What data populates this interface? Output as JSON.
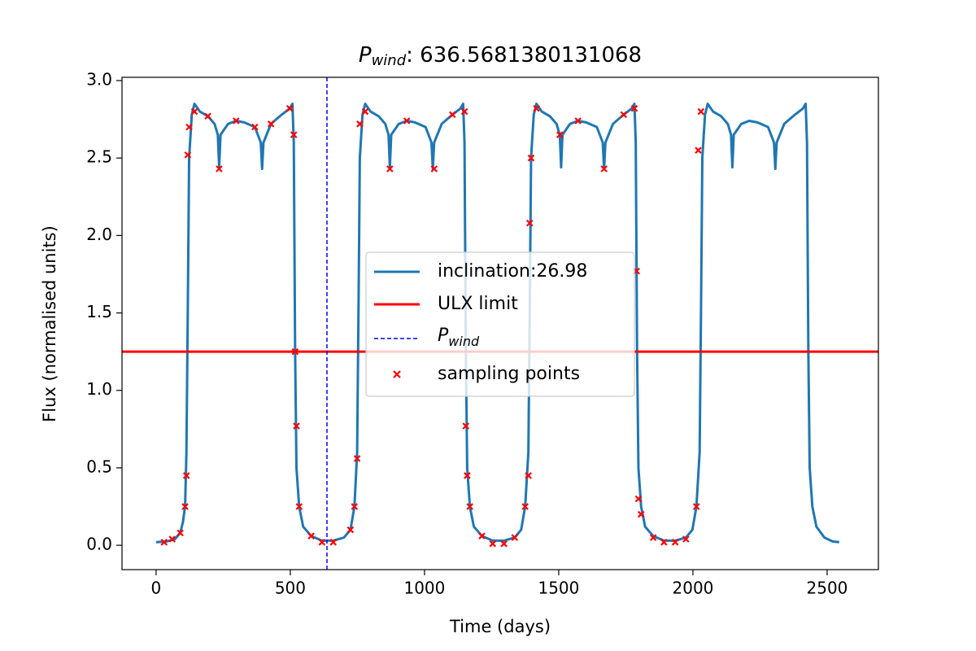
{
  "chart_data": {
    "type": "line",
    "title": {
      "symbol": "P",
      "subscript": "wind",
      "rest": ": 636.5681380131068"
    },
    "xlabel": "Time (days)",
    "ylabel": "Flux (normalised units)",
    "xlim": [
      -127,
      2691
    ],
    "ylim": [
      -0.157,
      3.021
    ],
    "xticks": [
      0,
      500,
      1000,
      1500,
      2000,
      2500
    ],
    "yticks": [
      {
        "value": 0,
        "label": "0.0"
      },
      0.5,
      {
        "value": 1,
        "label": "1.0"
      },
      1.5,
      {
        "value": 2,
        "label": "2.0"
      },
      2.5,
      {
        "value": 3,
        "label": "3.0"
      }
    ],
    "legend": "center",
    "series": [
      {
        "name": "inclination:26.98",
        "color": "#1f77b4",
        "x": [
          0,
          40,
          70,
          90,
          100,
          108,
          113,
          118,
          123,
          133,
          143,
          163,
          193,
          218,
          230,
          235,
          240,
          268,
          298,
          328,
          368,
          390,
          395,
          400,
          428,
          468,
          498,
          508,
          513,
          518,
          523,
          533,
          548,
          578,
          618,
          660,
          700,
          724,
          739,
          749,
          754,
          759,
          769,
          779,
          799,
          829,
          854,
          866,
          871,
          876,
          904,
          934,
          964,
          1004,
          1026,
          1031,
          1036,
          1064,
          1104,
          1134,
          1144,
          1149,
          1154,
          1159,
          1169,
          1184,
          1214,
          1254,
          1296,
          1336,
          1360,
          1375,
          1387,
          1392,
          1397,
          1407,
          1417,
          1437,
          1467,
          1492,
          1504,
          1509,
          1514,
          1542,
          1572,
          1602,
          1642,
          1664,
          1669,
          1674,
          1702,
          1742,
          1772,
          1782,
          1787,
          1792,
          1797,
          1807,
          1822,
          1852,
          1892,
          1934,
          1974,
          1998,
          2013,
          2025,
          2030,
          2035,
          2045,
          2055,
          2075,
          2105,
          2130,
          2142,
          2147,
          2152,
          2180,
          2210,
          2240,
          2280,
          2302,
          2307,
          2312,
          2340,
          2380,
          2410,
          2420,
          2425,
          2430,
          2435,
          2445,
          2460,
          2490,
          2520,
          2545
        ],
        "values": [
          0.02,
          0.025,
          0.04,
          0.08,
          0.15,
          0.25,
          0.6,
          1.5,
          2.5,
          2.78,
          2.85,
          2.8,
          2.77,
          2.72,
          2.65,
          2.44,
          2.65,
          2.72,
          2.74,
          2.73,
          2.7,
          2.6,
          2.43,
          2.6,
          2.72,
          2.78,
          2.82,
          2.85,
          2.6,
          1.25,
          0.5,
          0.25,
          0.12,
          0.06,
          0.03,
          0.03,
          0.05,
          0.1,
          0.25,
          0.6,
          1.5,
          2.5,
          2.78,
          2.85,
          2.8,
          2.77,
          2.72,
          2.65,
          2.44,
          2.65,
          2.72,
          2.74,
          2.73,
          2.7,
          2.6,
          2.43,
          2.6,
          2.72,
          2.78,
          2.82,
          2.85,
          2.6,
          1.25,
          0.5,
          0.25,
          0.12,
          0.06,
          0.03,
          0.03,
          0.05,
          0.1,
          0.25,
          0.6,
          1.5,
          2.5,
          2.78,
          2.85,
          2.8,
          2.77,
          2.72,
          2.65,
          2.44,
          2.65,
          2.72,
          2.74,
          2.73,
          2.7,
          2.6,
          2.43,
          2.6,
          2.72,
          2.78,
          2.82,
          2.85,
          2.6,
          1.25,
          0.5,
          0.25,
          0.12,
          0.06,
          0.03,
          0.03,
          0.05,
          0.1,
          0.25,
          0.6,
          1.5,
          2.5,
          2.78,
          2.85,
          2.8,
          2.77,
          2.72,
          2.65,
          2.44,
          2.65,
          2.72,
          2.74,
          2.73,
          2.7,
          2.6,
          2.43,
          2.6,
          2.72,
          2.78,
          2.82,
          2.85,
          2.6,
          1.25,
          0.5,
          0.25,
          0.12,
          0.05,
          0.025,
          0.02
        ]
      }
    ],
    "hline": {
      "name": "ULX limit",
      "color": "#ff0000",
      "value": 1.25
    },
    "vline": {
      "name": "P",
      "name_subscript": "wind",
      "color": "#0000ff",
      "value": 636.5681380131068
    },
    "scatter": {
      "name": "sampling points",
      "color": "#ff0000",
      "x": [
        30,
        60,
        90,
        108,
        113,
        118,
        123,
        143,
        193,
        235,
        298,
        368,
        428,
        498,
        513,
        518,
        523,
        533,
        578,
        618,
        660,
        724,
        739,
        749,
        759,
        779,
        871,
        934,
        1036,
        1104,
        1149,
        1154,
        1159,
        1169,
        1214,
        1254,
        1296,
        1336,
        1375,
        1387,
        1392,
        1397,
        1417,
        1504,
        1572,
        1669,
        1742,
        1782,
        1790,
        1797,
        1807,
        1852,
        1892,
        1934,
        1974,
        2013,
        2020,
        2030
      ],
      "values": [
        0.02,
        0.04,
        0.08,
        0.25,
        0.45,
        2.52,
        2.7,
        2.8,
        2.77,
        2.43,
        2.74,
        2.7,
        2.72,
        2.82,
        2.65,
        1.25,
        0.77,
        0.25,
        0.06,
        0.02,
        0.02,
        0.1,
        0.25,
        0.56,
        2.72,
        2.8,
        2.43,
        2.74,
        2.43,
        2.78,
        2.8,
        0.77,
        0.45,
        0.25,
        0.06,
        0.01,
        0.01,
        0.05,
        0.25,
        0.45,
        2.08,
        2.5,
        2.82,
        2.65,
        2.74,
        2.43,
        2.78,
        2.82,
        1.77,
        0.3,
        0.2,
        0.05,
        0.02,
        0.02,
        0.04,
        0.25,
        2.55,
        2.8
      ]
    }
  }
}
